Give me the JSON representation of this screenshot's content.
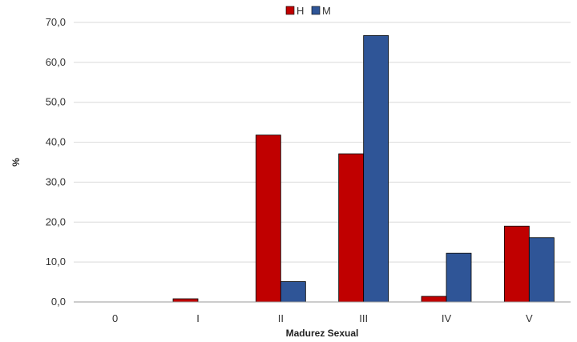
{
  "chart_data": {
    "type": "bar",
    "categories": [
      "0",
      "I",
      "II",
      "III",
      "IV",
      "V"
    ],
    "series": [
      {
        "name": "H",
        "color": "#c00000",
        "values": [
          0.0,
          0.8,
          41.8,
          37.1,
          1.4,
          19.0
        ]
      },
      {
        "name": "M",
        "color": "#2f5597",
        "values": [
          0.0,
          0.0,
          5.1,
          66.7,
          12.2,
          16.1
        ]
      }
    ],
    "title": "",
    "xlabel": "Madurez Sexual",
    "ylabel": "%",
    "ylim": [
      0,
      70
    ],
    "yticks": [
      "0,0",
      "10,0",
      "20,0",
      "30,0",
      "40,0",
      "50,0",
      "60,0",
      "70,0"
    ],
    "grid": true,
    "legend_position": "top-center"
  }
}
